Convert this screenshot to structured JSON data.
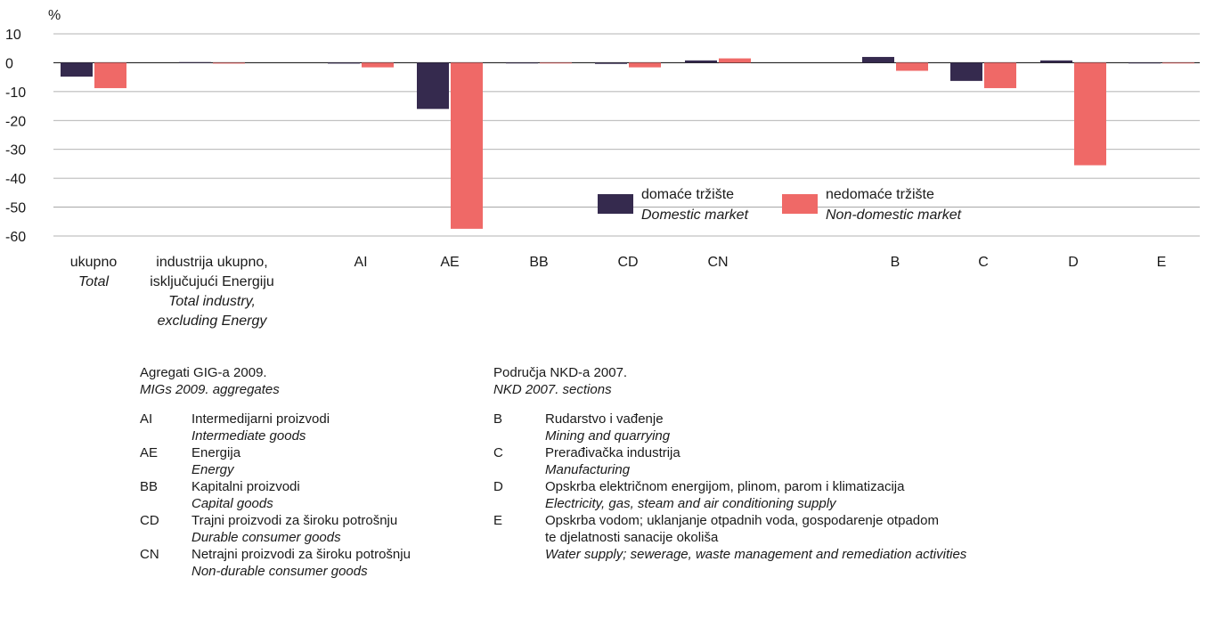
{
  "chart_data": {
    "type": "bar",
    "ylabel": "%",
    "ylim": [
      -60,
      10
    ],
    "yticks": [
      10,
      0,
      -10,
      -20,
      -30,
      -40,
      -50,
      -60
    ],
    "grid": true,
    "categories": [
      {
        "code": "",
        "label": [
          "ukupno"
        ],
        "label_en": [
          "Total"
        ]
      },
      {
        "code": "",
        "label": [
          "industrija ukupno,",
          "isključujući Energiju"
        ],
        "label_en": [
          "Total industry,",
          "excluding Energy"
        ]
      },
      {
        "code": "AI",
        "label": [
          "AI"
        ],
        "label_en": []
      },
      {
        "code": "AE",
        "label": [
          "AE"
        ],
        "label_en": []
      },
      {
        "code": "BB",
        "label": [
          "BB"
        ],
        "label_en": []
      },
      {
        "code": "CD",
        "label": [
          "CD"
        ],
        "label_en": []
      },
      {
        "code": "CN",
        "label": [
          "CN"
        ],
        "label_en": []
      },
      {
        "code": "B",
        "label": [
          "B"
        ],
        "label_en": []
      },
      {
        "code": "C",
        "label": [
          "C"
        ],
        "label_en": []
      },
      {
        "code": "D",
        "label": [
          "D"
        ],
        "label_en": []
      },
      {
        "code": "E",
        "label": [
          "E"
        ],
        "label_en": []
      }
    ],
    "series": [
      {
        "name": "domaće tržište",
        "name_en": "Domestic market",
        "color": "#352a4e",
        "values": [
          -4.8,
          0.2,
          -0.3,
          -16.0,
          0.0,
          -0.4,
          0.8,
          2.0,
          -6.3,
          0.8,
          0.0
        ]
      },
      {
        "name": "nedomaće tržište",
        "name_en": "Non-domestic market",
        "color": "#ef6967",
        "values": [
          -8.8,
          -0.3,
          -1.6,
          -57.5,
          -0.2,
          -1.6,
          1.5,
          -2.8,
          -8.8,
          -35.5,
          0.0
        ]
      }
    ],
    "legend_position": "bottom-right"
  },
  "notes": {
    "mig": {
      "heading": "Agregati GIG-a 2009.",
      "heading_en": "MIGs 2009. aggregates",
      "items": [
        {
          "code": "AI",
          "text": "Intermedijarni proizvodi",
          "text_en": "Intermediate goods"
        },
        {
          "code": "AE",
          "text": "Energija",
          "text_en": "Energy"
        },
        {
          "code": "BB",
          "text": "Kapitalni proizvodi",
          "text_en": "Capital goods"
        },
        {
          "code": "CD",
          "text": "Trajni proizvodi za široku potrošnju",
          "text_en": "Durable consumer goods"
        },
        {
          "code": "CN",
          "text": "Netrajni proizvodi za široku potrošnju",
          "text_en": "Non-durable consumer goods"
        }
      ]
    },
    "nkd": {
      "heading": "Područja NKD-a 2007.",
      "heading_en": "NKD 2007. sections",
      "items": [
        {
          "code": "B",
          "text": "Rudarstvo i vađenje",
          "text_en": "Mining and quarrying"
        },
        {
          "code": "C",
          "text": "Prerađivačka industrija",
          "text_en": "Manufacturing"
        },
        {
          "code": "D",
          "text": "Opskrba električnom energijom, plinom, parom i klimatizacija",
          "text_en": "Electricity, gas, steam and air conditioning supply"
        },
        {
          "code": "E",
          "text": "Opskrba vodom; uklanjanje otpadnih voda, gospodarenje otpadom\nte djelatnosti sanacije okoliša",
          "text_en": "Water supply; sewerage, waste management and remediation activities"
        }
      ]
    }
  }
}
